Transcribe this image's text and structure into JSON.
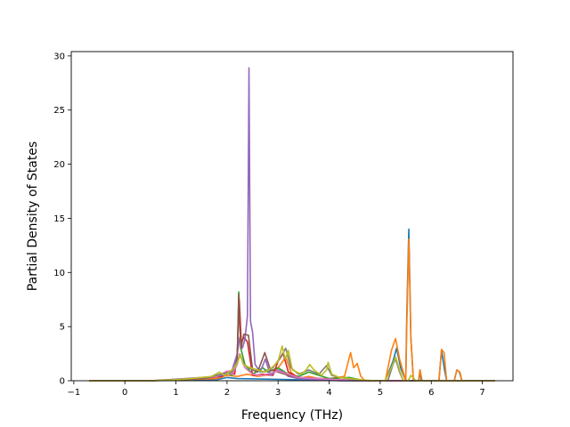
{
  "chart_data": {
    "type": "line",
    "title": "",
    "xlabel": "Frequency (THz)",
    "ylabel": "Partial Density of States",
    "xlim": [
      -1.05,
      7.6
    ],
    "ylim": [
      0,
      30.4
    ],
    "xticks": [
      -1,
      0,
      1,
      2,
      3,
      4,
      5,
      6,
      7
    ],
    "yticks": [
      0,
      5,
      10,
      15,
      20,
      25,
      30
    ],
    "grid": false,
    "legend": "none",
    "series": [
      {
        "color": "#1f77b4",
        "points": [
          [
            -0.7,
            0
          ],
          [
            0.5,
            0
          ],
          [
            1.8,
            0.1
          ],
          [
            2.0,
            0.3
          ],
          [
            2.2,
            0.2
          ],
          [
            4.35,
            0
          ],
          [
            5.1,
            0
          ],
          [
            5.25,
            1.8
          ],
          [
            5.32,
            3.0
          ],
          [
            5.4,
            1.2
          ],
          [
            5.5,
            0
          ],
          [
            5.52,
            6.0
          ],
          [
            5.56,
            14.0
          ],
          [
            5.6,
            4.0
          ],
          [
            5.65,
            0
          ],
          [
            5.75,
            0
          ],
          [
            5.78,
            1.0
          ],
          [
            5.8,
            0
          ],
          [
            6.15,
            0
          ],
          [
            6.2,
            2.8
          ],
          [
            6.26,
            1.0
          ],
          [
            6.3,
            0
          ],
          [
            6.45,
            0
          ],
          [
            6.5,
            1.0
          ],
          [
            6.55,
            0.8
          ],
          [
            6.6,
            0
          ],
          [
            7.25,
            0
          ]
        ]
      },
      {
        "color": "#ff7f0e",
        "points": [
          [
            -0.7,
            0
          ],
          [
            0.5,
            0
          ],
          [
            1.8,
            0.2
          ],
          [
            2.0,
            0.5
          ],
          [
            2.2,
            0.4
          ],
          [
            2.4,
            0.6
          ],
          [
            2.6,
            0.4
          ],
          [
            2.9,
            0.6
          ],
          [
            3.05,
            1.5
          ],
          [
            3.15,
            2.2
          ],
          [
            3.25,
            0.8
          ],
          [
            3.4,
            0.2
          ],
          [
            3.6,
            0.4
          ],
          [
            3.8,
            0.2
          ],
          [
            4.0,
            0.2
          ],
          [
            4.3,
            0.4
          ],
          [
            4.42,
            2.6
          ],
          [
            4.48,
            1.2
          ],
          [
            4.55,
            1.6
          ],
          [
            4.62,
            0.4
          ],
          [
            4.7,
            0
          ],
          [
            5.1,
            0
          ],
          [
            5.22,
            2.8
          ],
          [
            5.3,
            3.9
          ],
          [
            5.38,
            2.0
          ],
          [
            5.45,
            0.8
          ],
          [
            5.5,
            0
          ],
          [
            5.52,
            5.0
          ],
          [
            5.56,
            13.1
          ],
          [
            5.6,
            4.0
          ],
          [
            5.65,
            0
          ],
          [
            5.75,
            0
          ],
          [
            5.78,
            1.0
          ],
          [
            5.82,
            0
          ],
          [
            6.15,
            0
          ],
          [
            6.2,
            2.9
          ],
          [
            6.25,
            2.6
          ],
          [
            6.3,
            0
          ],
          [
            6.45,
            0
          ],
          [
            6.5,
            1.0
          ],
          [
            6.56,
            0.8
          ],
          [
            6.6,
            0
          ],
          [
            7.25,
            0
          ]
        ]
      },
      {
        "color": "#2ca02c",
        "points": [
          [
            -0.7,
            0
          ],
          [
            0.5,
            0
          ],
          [
            1.2,
            0.1
          ],
          [
            1.6,
            0.3
          ],
          [
            1.8,
            0.5
          ],
          [
            2.0,
            0.8
          ],
          [
            2.1,
            0.5
          ],
          [
            2.2,
            2.0
          ],
          [
            2.23,
            8.2
          ],
          [
            2.27,
            3.0
          ],
          [
            2.35,
            1.5
          ],
          [
            2.5,
            0.6
          ],
          [
            2.7,
            1.2
          ],
          [
            2.8,
            0.8
          ],
          [
            3.0,
            1.2
          ],
          [
            3.2,
            0.6
          ],
          [
            3.4,
            0.4
          ],
          [
            3.6,
            0.8
          ],
          [
            3.8,
            0.5
          ],
          [
            4.0,
            0.2
          ],
          [
            4.4,
            0.3
          ],
          [
            4.7,
            0
          ],
          [
            7.25,
            0
          ]
        ]
      },
      {
        "color": "#d62728",
        "points": [
          [
            -0.7,
            0
          ],
          [
            0.5,
            0
          ],
          [
            1.5,
            0.2
          ],
          [
            1.9,
            0.4
          ],
          [
            2.05,
            0.9
          ],
          [
            2.15,
            0.6
          ],
          [
            2.2,
            2.5
          ],
          [
            2.24,
            7.5
          ],
          [
            2.28,
            3.5
          ],
          [
            2.33,
            4.0
          ],
          [
            2.4,
            3.6
          ],
          [
            2.5,
            0.5
          ],
          [
            2.7,
            0.6
          ],
          [
            2.9,
            0.5
          ],
          [
            3.0,
            1.8
          ],
          [
            3.1,
            2.5
          ],
          [
            3.2,
            0.8
          ],
          [
            3.4,
            0.3
          ],
          [
            3.8,
            0.2
          ],
          [
            4.2,
            0.1
          ],
          [
            4.6,
            0
          ],
          [
            7.25,
            0
          ]
        ]
      },
      {
        "color": "#9467bd",
        "points": [
          [
            -0.7,
            0
          ],
          [
            0.5,
            0
          ],
          [
            1.0,
            0.1
          ],
          [
            1.5,
            0.2
          ],
          [
            1.8,
            0.4
          ],
          [
            2.0,
            0.6
          ],
          [
            2.1,
            1.0
          ],
          [
            2.2,
            2.5
          ],
          [
            2.25,
            4.0
          ],
          [
            2.3,
            3.0
          ],
          [
            2.35,
            3.8
          ],
          [
            2.4,
            6.0
          ],
          [
            2.43,
            28.9
          ],
          [
            2.46,
            5.5
          ],
          [
            2.5,
            4.5
          ],
          [
            2.55,
            1.5
          ],
          [
            2.65,
            0.8
          ],
          [
            2.75,
            2.0
          ],
          [
            2.85,
            0.5
          ],
          [
            3.0,
            1.0
          ],
          [
            3.1,
            0.8
          ],
          [
            3.2,
            0.4
          ],
          [
            3.4,
            0.2
          ],
          [
            3.8,
            0.1
          ],
          [
            4.2,
            0
          ],
          [
            7.25,
            0
          ]
        ]
      },
      {
        "color": "#8c564b",
        "points": [
          [
            -0.7,
            0
          ],
          [
            0.5,
            0
          ],
          [
            1.5,
            0.2
          ],
          [
            1.8,
            0.5
          ],
          [
            2.0,
            0.8
          ],
          [
            2.1,
            0.6
          ],
          [
            2.2,
            2.0
          ],
          [
            2.23,
            8.0
          ],
          [
            2.27,
            3.0
          ],
          [
            2.33,
            4.3
          ],
          [
            2.42,
            4.2
          ],
          [
            2.5,
            1.0
          ],
          [
            2.6,
            0.8
          ],
          [
            2.74,
            2.6
          ],
          [
            2.85,
            1.0
          ],
          [
            3.0,
            0.8
          ],
          [
            3.2,
            0.5
          ],
          [
            3.4,
            0.3
          ],
          [
            3.8,
            0.2
          ],
          [
            4.2,
            0.1
          ],
          [
            4.6,
            0
          ],
          [
            7.25,
            0
          ]
        ]
      },
      {
        "color": "#e377c2",
        "points": [
          [
            -0.7,
            0
          ],
          [
            0.5,
            0
          ],
          [
            1.8,
            0.4
          ],
          [
            2.0,
            0.9
          ],
          [
            2.1,
            0.6
          ],
          [
            2.2,
            1.5
          ],
          [
            2.25,
            2.5
          ],
          [
            2.35,
            1.2
          ],
          [
            2.5,
            0.6
          ],
          [
            2.7,
            0.5
          ],
          [
            3.0,
            0.9
          ],
          [
            3.2,
            0.6
          ],
          [
            3.4,
            0.3
          ],
          [
            3.8,
            0.2
          ],
          [
            4.2,
            0.1
          ],
          [
            4.6,
            0
          ],
          [
            7.25,
            0
          ]
        ]
      },
      {
        "color": "#7f7f7f",
        "points": [
          [
            -0.7,
            0
          ],
          [
            0.5,
            0
          ],
          [
            1.6,
            0.3
          ],
          [
            1.9,
            0.6
          ],
          [
            2.1,
            0.8
          ],
          [
            2.2,
            1.8
          ],
          [
            2.26,
            2.3
          ],
          [
            2.35,
            1.4
          ],
          [
            2.5,
            1.0
          ],
          [
            2.7,
            0.8
          ],
          [
            2.9,
            1.2
          ],
          [
            3.05,
            2.2
          ],
          [
            3.15,
            3.0
          ],
          [
            3.25,
            1.2
          ],
          [
            3.4,
            0.6
          ],
          [
            3.6,
            1.0
          ],
          [
            3.8,
            0.6
          ],
          [
            3.95,
            1.4
          ],
          [
            4.05,
            0.5
          ],
          [
            4.2,
            0.3
          ],
          [
            4.5,
            0.1
          ],
          [
            4.8,
            0
          ],
          [
            5.15,
            0
          ],
          [
            5.25,
            1.5
          ],
          [
            5.3,
            2.0
          ],
          [
            5.38,
            0.8
          ],
          [
            5.45,
            0
          ],
          [
            7.25,
            0
          ]
        ]
      },
      {
        "color": "#bcbd22",
        "points": [
          [
            -0.7,
            0
          ],
          [
            0.5,
            0
          ],
          [
            1.0,
            0.1
          ],
          [
            1.3,
            0.2
          ],
          [
            1.5,
            0.3
          ],
          [
            1.7,
            0.4
          ],
          [
            1.85,
            0.8
          ],
          [
            1.95,
            0.5
          ],
          [
            2.1,
            1.0
          ],
          [
            2.2,
            1.6
          ],
          [
            2.26,
            2.4
          ],
          [
            2.32,
            1.5
          ],
          [
            2.45,
            1.2
          ],
          [
            2.6,
            1.0
          ],
          [
            2.75,
            0.8
          ],
          [
            2.9,
            1.3
          ],
          [
            3.0,
            1.8
          ],
          [
            3.08,
            3.2
          ],
          [
            3.14,
            2.0
          ],
          [
            3.2,
            2.8
          ],
          [
            3.28,
            1.0
          ],
          [
            3.45,
            0.6
          ],
          [
            3.55,
            1.0
          ],
          [
            3.62,
            1.5
          ],
          [
            3.7,
            1.0
          ],
          [
            3.85,
            0.5
          ],
          [
            3.95,
            1.0
          ],
          [
            3.98,
            1.7
          ],
          [
            4.05,
            0.6
          ],
          [
            4.2,
            0.3
          ],
          [
            4.4,
            0.2
          ],
          [
            4.6,
            0.1
          ],
          [
            4.9,
            0
          ],
          [
            5.1,
            0
          ],
          [
            5.22,
            1.2
          ],
          [
            5.3,
            2.2
          ],
          [
            5.38,
            1.0
          ],
          [
            5.45,
            0
          ],
          [
            5.55,
            0
          ],
          [
            5.6,
            0.5
          ],
          [
            5.7,
            0
          ],
          [
            7.25,
            0
          ]
        ]
      }
    ]
  }
}
